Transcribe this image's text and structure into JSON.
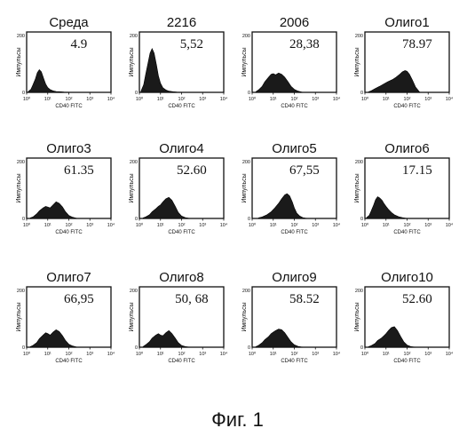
{
  "figure_caption": "Фиг. 1",
  "chart_data": [
    {
      "type": "area",
      "title": "Среда",
      "annotation": "4.9",
      "ylabel": "Импульсы",
      "xlabel": "CD40 FITC",
      "ylim": [
        0,
        200
      ],
      "xlim": [
        1,
        10000
      ],
      "x_scale": "log",
      "y_ticks": [
        "0",
        "200"
      ],
      "x_ticks": [
        "10⁰",
        "10¹",
        "10²",
        "10³",
        "10⁴"
      ],
      "x": [
        1.2,
        1.6,
        2,
        2.6,
        3.2,
        4,
        5,
        6.5,
        8,
        10,
        13,
        18,
        25,
        40,
        60,
        100
      ],
      "values": [
        3,
        10,
        25,
        45,
        65,
        75,
        68,
        45,
        28,
        16,
        9,
        5,
        3,
        2,
        1,
        0
      ]
    },
    {
      "type": "area",
      "title": "2216",
      "annotation": "5,52",
      "ylabel": "Импульсы",
      "xlabel": "CD40 FITC",
      "ylim": [
        0,
        200
      ],
      "xlim": [
        1,
        10000
      ],
      "x_scale": "log",
      "y_ticks": [
        "0",
        "200"
      ],
      "x_ticks": [
        "10⁰",
        "10¹",
        "10²",
        "10³",
        "10⁴"
      ],
      "x": [
        1.2,
        1.6,
        2,
        2.6,
        3.2,
        4,
        5,
        6.5,
        8,
        10,
        13,
        18,
        25,
        40,
        60,
        100
      ],
      "values": [
        5,
        25,
        60,
        100,
        130,
        145,
        130,
        90,
        55,
        30,
        15,
        8,
        4,
        2,
        1,
        0
      ]
    },
    {
      "type": "area",
      "title": "2006",
      "annotation": "28,38",
      "ylabel": "Импульсы",
      "xlabel": "CD40 FITC",
      "ylim": [
        0,
        200
      ],
      "xlim": [
        1,
        10000
      ],
      "x_scale": "log",
      "y_ticks": [
        "0",
        "200"
      ],
      "x_ticks": [
        "10⁰",
        "10¹",
        "10²",
        "10³",
        "10⁴"
      ],
      "x": [
        1.5,
        2,
        3,
        4,
        6,
        8,
        10,
        13,
        18,
        25,
        35,
        50,
        70,
        100,
        150,
        250
      ],
      "values": [
        2,
        8,
        20,
        35,
        50,
        60,
        62,
        58,
        64,
        60,
        50,
        35,
        20,
        10,
        4,
        0
      ]
    },
    {
      "type": "area",
      "title": "Олиго1",
      "annotation": "78.97",
      "ylabel": "Импульсы",
      "xlabel": "CD40 FITC",
      "ylim": [
        0,
        200
      ],
      "xlim": [
        1,
        10000
      ],
      "x_scale": "log",
      "y_ticks": [
        "0",
        "200"
      ],
      "x_ticks": [
        "10⁰",
        "10¹",
        "10²",
        "10³",
        "10⁴"
      ],
      "x": [
        1.5,
        2,
        3,
        5,
        8,
        12,
        20,
        30,
        45,
        60,
        80,
        100,
        130,
        180,
        250,
        400
      ],
      "values": [
        2,
        5,
        12,
        20,
        28,
        35,
        42,
        50,
        60,
        68,
        72,
        70,
        60,
        40,
        18,
        0
      ]
    },
    {
      "type": "area",
      "title": "Олиго3",
      "annotation": "61.35",
      "ylabel": "Импульсы",
      "xlabel": "CD40 FITC",
      "ylim": [
        0,
        200
      ],
      "xlim": [
        1,
        10000
      ],
      "x_scale": "log",
      "y_ticks": [
        "0",
        "200"
      ],
      "x_ticks": [
        "10⁰",
        "10¹",
        "10²",
        "10³",
        "10⁴"
      ],
      "x": [
        1.5,
        2,
        3,
        4,
        6,
        8,
        10,
        13,
        18,
        25,
        35,
        50,
        70,
        100,
        150,
        250
      ],
      "values": [
        2,
        5,
        15,
        25,
        35,
        40,
        38,
        35,
        45,
        55,
        50,
        38,
        22,
        10,
        4,
        0
      ]
    },
    {
      "type": "area",
      "title": "Олиго4",
      "annotation": "52.60",
      "ylabel": "Импульсы",
      "xlabel": "CD40 FITC",
      "ylim": [
        0,
        200
      ],
      "xlim": [
        1,
        10000
      ],
      "x_scale": "log",
      "y_ticks": [
        "0",
        "200"
      ],
      "x_ticks": [
        "10⁰",
        "10¹",
        "10²",
        "10³",
        "10⁴"
      ],
      "x": [
        1.5,
        2,
        3,
        4,
        6,
        8,
        10,
        13,
        18,
        25,
        35,
        50,
        70,
        100,
        150,
        250
      ],
      "values": [
        2,
        5,
        12,
        22,
        32,
        40,
        45,
        55,
        65,
        70,
        60,
        40,
        20,
        8,
        3,
        0
      ]
    },
    {
      "type": "area",
      "title": "Олиго5",
      "annotation": "67,55",
      "ylabel": "Импульсы",
      "xlabel": "CD40 FITC",
      "ylim": [
        0,
        200
      ],
      "xlim": [
        1,
        10000
      ],
      "x_scale": "log",
      "y_ticks": [
        "0",
        "200"
      ],
      "x_ticks": [
        "10⁰",
        "10¹",
        "10²",
        "10³",
        "10⁴"
      ],
      "x": [
        2,
        3,
        5,
        8,
        12,
        18,
        25,
        35,
        45,
        60,
        80,
        100,
        130,
        180,
        250,
        400
      ],
      "values": [
        2,
        5,
        12,
        22,
        35,
        50,
        65,
        78,
        82,
        75,
        55,
        35,
        18,
        8,
        3,
        0
      ]
    },
    {
      "type": "area",
      "title": "Олиго6",
      "annotation": "17.15",
      "ylabel": "Импульсы",
      "xlabel": "CD40 FITC",
      "ylim": [
        0,
        200
      ],
      "xlim": [
        1,
        10000
      ],
      "x_scale": "log",
      "y_ticks": [
        "0",
        "200"
      ],
      "x_ticks": [
        "10⁰",
        "10¹",
        "10²",
        "10³",
        "10⁴"
      ],
      "x": [
        1.2,
        1.6,
        2,
        2.6,
        3.2,
        4,
        5,
        6.5,
        8,
        10,
        13,
        18,
        25,
        40,
        60,
        100
      ],
      "values": [
        3,
        10,
        25,
        45,
        62,
        72,
        68,
        60,
        50,
        40,
        30,
        20,
        12,
        6,
        3,
        0
      ]
    },
    {
      "type": "area",
      "title": "Олиго7",
      "annotation": "66,95",
      "ylabel": "Импульсы",
      "xlabel": "CD40 FITC",
      "ylim": [
        0,
        200
      ],
      "xlim": [
        1,
        10000
      ],
      "x_scale": "log",
      "y_ticks": [
        "0",
        "200"
      ],
      "x_ticks": [
        "10⁰",
        "10¹",
        "10²",
        "10³",
        "10⁴"
      ],
      "x": [
        1.5,
        2,
        3,
        4,
        6,
        8,
        10,
        13,
        18,
        25,
        35,
        50,
        70,
        100,
        150,
        250
      ],
      "values": [
        2,
        6,
        15,
        28,
        40,
        48,
        45,
        40,
        50,
        58,
        52,
        38,
        22,
        10,
        4,
        0
      ]
    },
    {
      "type": "area",
      "title": "Олиго8",
      "annotation": "50, 68",
      "ylabel": "Импульсы",
      "xlabel": "CD40 FITC",
      "ylim": [
        0,
        200
      ],
      "xlim": [
        1,
        10000
      ],
      "x_scale": "log",
      "y_ticks": [
        "0",
        "200"
      ],
      "x_ticks": [
        "10⁰",
        "10¹",
        "10²",
        "10³",
        "10⁴"
      ],
      "x": [
        1.5,
        2,
        3,
        4,
        6,
        8,
        10,
        13,
        18,
        25,
        35,
        50,
        70,
        100,
        150,
        250
      ],
      "values": [
        2,
        8,
        18,
        30,
        40,
        45,
        40,
        38,
        48,
        55,
        45,
        30,
        15,
        6,
        2,
        0
      ]
    },
    {
      "type": "area",
      "title": "Олиго9",
      "annotation": "58.52",
      "ylabel": "Импульсы",
      "xlabel": "CD40 FITC",
      "ylim": [
        0,
        200
      ],
      "xlim": [
        1,
        10000
      ],
      "x_scale": "log",
      "y_ticks": [
        "0",
        "200"
      ],
      "x_ticks": [
        "10⁰",
        "10¹",
        "10²",
        "10³",
        "10⁴"
      ],
      "x": [
        1.5,
        2,
        3,
        4,
        6,
        8,
        10,
        13,
        18,
        25,
        35,
        50,
        70,
        100,
        150,
        250
      ],
      "values": [
        2,
        6,
        15,
        25,
        35,
        45,
        50,
        55,
        60,
        58,
        48,
        32,
        18,
        8,
        3,
        0
      ]
    },
    {
      "type": "area",
      "title": "Олиго10",
      "annotation": "52.60",
      "ylabel": "Импульсы",
      "xlabel": "CD40 FITC",
      "ylim": [
        0,
        200
      ],
      "xlim": [
        1,
        10000
      ],
      "x_scale": "log",
      "y_ticks": [
        "0",
        "200"
      ],
      "x_ticks": [
        "10⁰",
        "10¹",
        "10²",
        "10³",
        "10⁴"
      ],
      "x": [
        1.5,
        2,
        3,
        4,
        6,
        8,
        10,
        13,
        18,
        25,
        35,
        50,
        70,
        100,
        150,
        250
      ],
      "values": [
        2,
        5,
        12,
        22,
        30,
        38,
        45,
        55,
        65,
        68,
        55,
        35,
        18,
        7,
        2,
        0
      ]
    }
  ]
}
